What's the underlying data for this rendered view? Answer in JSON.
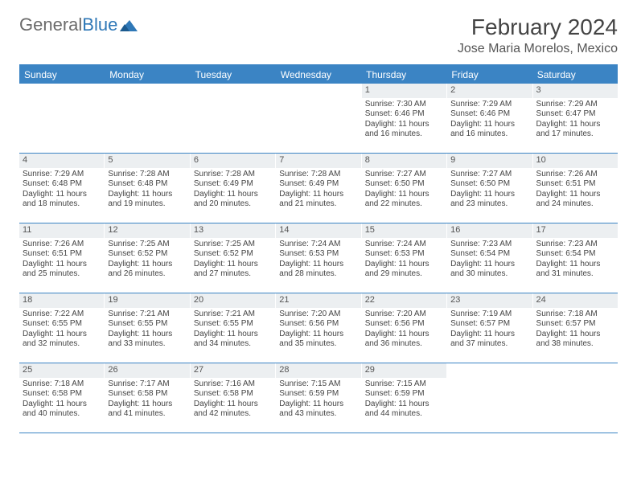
{
  "logo": {
    "text1": "General",
    "text2": "Blue"
  },
  "title": "February 2024",
  "location": "Jose Maria Morelos, Mexico",
  "colors": {
    "header_bg": "#3b84c4",
    "daynum_bg": "#eceff1",
    "border": "#3b84c4",
    "text": "#444444",
    "logo_gray": "#6b6b6b",
    "logo_blue": "#2f78b7"
  },
  "day_headers": [
    "Sunday",
    "Monday",
    "Tuesday",
    "Wednesday",
    "Thursday",
    "Friday",
    "Saturday"
  ],
  "weeks": [
    [
      {
        "n": "",
        "sr": "",
        "ss": "",
        "dl": ""
      },
      {
        "n": "",
        "sr": "",
        "ss": "",
        "dl": ""
      },
      {
        "n": "",
        "sr": "",
        "ss": "",
        "dl": ""
      },
      {
        "n": "",
        "sr": "",
        "ss": "",
        "dl": ""
      },
      {
        "n": "1",
        "sr": "Sunrise: 7:30 AM",
        "ss": "Sunset: 6:46 PM",
        "dl": "Daylight: 11 hours and 16 minutes."
      },
      {
        "n": "2",
        "sr": "Sunrise: 7:29 AM",
        "ss": "Sunset: 6:46 PM",
        "dl": "Daylight: 11 hours and 16 minutes."
      },
      {
        "n": "3",
        "sr": "Sunrise: 7:29 AM",
        "ss": "Sunset: 6:47 PM",
        "dl": "Daylight: 11 hours and 17 minutes."
      }
    ],
    [
      {
        "n": "4",
        "sr": "Sunrise: 7:29 AM",
        "ss": "Sunset: 6:48 PM",
        "dl": "Daylight: 11 hours and 18 minutes."
      },
      {
        "n": "5",
        "sr": "Sunrise: 7:28 AM",
        "ss": "Sunset: 6:48 PM",
        "dl": "Daylight: 11 hours and 19 minutes."
      },
      {
        "n": "6",
        "sr": "Sunrise: 7:28 AM",
        "ss": "Sunset: 6:49 PM",
        "dl": "Daylight: 11 hours and 20 minutes."
      },
      {
        "n": "7",
        "sr": "Sunrise: 7:28 AM",
        "ss": "Sunset: 6:49 PM",
        "dl": "Daylight: 11 hours and 21 minutes."
      },
      {
        "n": "8",
        "sr": "Sunrise: 7:27 AM",
        "ss": "Sunset: 6:50 PM",
        "dl": "Daylight: 11 hours and 22 minutes."
      },
      {
        "n": "9",
        "sr": "Sunrise: 7:27 AM",
        "ss": "Sunset: 6:50 PM",
        "dl": "Daylight: 11 hours and 23 minutes."
      },
      {
        "n": "10",
        "sr": "Sunrise: 7:26 AM",
        "ss": "Sunset: 6:51 PM",
        "dl": "Daylight: 11 hours and 24 minutes."
      }
    ],
    [
      {
        "n": "11",
        "sr": "Sunrise: 7:26 AM",
        "ss": "Sunset: 6:51 PM",
        "dl": "Daylight: 11 hours and 25 minutes."
      },
      {
        "n": "12",
        "sr": "Sunrise: 7:25 AM",
        "ss": "Sunset: 6:52 PM",
        "dl": "Daylight: 11 hours and 26 minutes."
      },
      {
        "n": "13",
        "sr": "Sunrise: 7:25 AM",
        "ss": "Sunset: 6:52 PM",
        "dl": "Daylight: 11 hours and 27 minutes."
      },
      {
        "n": "14",
        "sr": "Sunrise: 7:24 AM",
        "ss": "Sunset: 6:53 PM",
        "dl": "Daylight: 11 hours and 28 minutes."
      },
      {
        "n": "15",
        "sr": "Sunrise: 7:24 AM",
        "ss": "Sunset: 6:53 PM",
        "dl": "Daylight: 11 hours and 29 minutes."
      },
      {
        "n": "16",
        "sr": "Sunrise: 7:23 AM",
        "ss": "Sunset: 6:54 PM",
        "dl": "Daylight: 11 hours and 30 minutes."
      },
      {
        "n": "17",
        "sr": "Sunrise: 7:23 AM",
        "ss": "Sunset: 6:54 PM",
        "dl": "Daylight: 11 hours and 31 minutes."
      }
    ],
    [
      {
        "n": "18",
        "sr": "Sunrise: 7:22 AM",
        "ss": "Sunset: 6:55 PM",
        "dl": "Daylight: 11 hours and 32 minutes."
      },
      {
        "n": "19",
        "sr": "Sunrise: 7:21 AM",
        "ss": "Sunset: 6:55 PM",
        "dl": "Daylight: 11 hours and 33 minutes."
      },
      {
        "n": "20",
        "sr": "Sunrise: 7:21 AM",
        "ss": "Sunset: 6:55 PM",
        "dl": "Daylight: 11 hours and 34 minutes."
      },
      {
        "n": "21",
        "sr": "Sunrise: 7:20 AM",
        "ss": "Sunset: 6:56 PM",
        "dl": "Daylight: 11 hours and 35 minutes."
      },
      {
        "n": "22",
        "sr": "Sunrise: 7:20 AM",
        "ss": "Sunset: 6:56 PM",
        "dl": "Daylight: 11 hours and 36 minutes."
      },
      {
        "n": "23",
        "sr": "Sunrise: 7:19 AM",
        "ss": "Sunset: 6:57 PM",
        "dl": "Daylight: 11 hours and 37 minutes."
      },
      {
        "n": "24",
        "sr": "Sunrise: 7:18 AM",
        "ss": "Sunset: 6:57 PM",
        "dl": "Daylight: 11 hours and 38 minutes."
      }
    ],
    [
      {
        "n": "25",
        "sr": "Sunrise: 7:18 AM",
        "ss": "Sunset: 6:58 PM",
        "dl": "Daylight: 11 hours and 40 minutes."
      },
      {
        "n": "26",
        "sr": "Sunrise: 7:17 AM",
        "ss": "Sunset: 6:58 PM",
        "dl": "Daylight: 11 hours and 41 minutes."
      },
      {
        "n": "27",
        "sr": "Sunrise: 7:16 AM",
        "ss": "Sunset: 6:58 PM",
        "dl": "Daylight: 11 hours and 42 minutes."
      },
      {
        "n": "28",
        "sr": "Sunrise: 7:15 AM",
        "ss": "Sunset: 6:59 PM",
        "dl": "Daylight: 11 hours and 43 minutes."
      },
      {
        "n": "29",
        "sr": "Sunrise: 7:15 AM",
        "ss": "Sunset: 6:59 PM",
        "dl": "Daylight: 11 hours and 44 minutes."
      },
      {
        "n": "",
        "sr": "",
        "ss": "",
        "dl": ""
      },
      {
        "n": "",
        "sr": "",
        "ss": "",
        "dl": ""
      }
    ]
  ]
}
